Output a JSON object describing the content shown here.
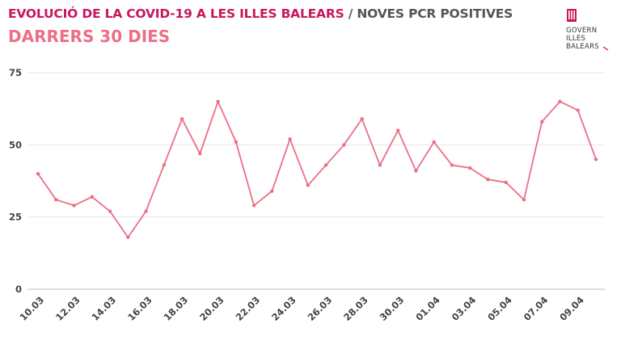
{
  "header": {
    "title_main": "EVOLUCIÓ DE LA COVID-19 A LES ILLES BALEARS",
    "title_sep": " / ",
    "title_sub": "NOVES PCR POSITIVES",
    "subtitle": "DARRERS 30 DIES"
  },
  "logo": {
    "line1": "GOVERN",
    "line2": "ILLES",
    "line3": "BALEARS",
    "color": "#c8175d"
  },
  "chart_data": {
    "type": "line",
    "title": "EVOLUCIÓ DE LA COVID-19 A LES ILLES BALEARS / NOVES PCR POSITIVES",
    "subtitle": "DARRERS 30 DIES",
    "xlabel": "",
    "ylabel": "",
    "ylim": [
      0,
      75
    ],
    "yticks": [
      "0",
      "25",
      "50",
      "75"
    ],
    "x": [
      "10.03",
      "11.03",
      "12.03",
      "13.03",
      "14.03",
      "15.03",
      "16.03",
      "17.03",
      "18.03",
      "19.03",
      "20.03",
      "21.03",
      "22.03",
      "23.03",
      "24.03",
      "25.03",
      "26.03",
      "27.03",
      "28.03",
      "29.03",
      "30.03",
      "31.03",
      "01.04",
      "02.04",
      "03.04",
      "04.04",
      "05.04",
      "06.04",
      "07.04",
      "08.04",
      "09.04",
      "10.04"
    ],
    "xtick_labels": [
      "10.03",
      "12.03",
      "14.03",
      "16.03",
      "18.03",
      "20.03",
      "22.03",
      "24.03",
      "26.03",
      "28.03",
      "30.03",
      "01.04",
      "03.04",
      "05.04",
      "07.04",
      "09.04"
    ],
    "values": [
      40,
      31,
      29,
      32,
      27,
      18,
      27,
      43,
      59,
      47,
      65,
      51,
      29,
      34,
      52,
      36,
      43,
      50,
      59,
      43,
      55,
      41,
      51,
      43,
      42,
      38,
      37,
      31,
      58,
      65,
      62,
      45
    ],
    "line_color": "#ec6f86",
    "grid": true
  }
}
